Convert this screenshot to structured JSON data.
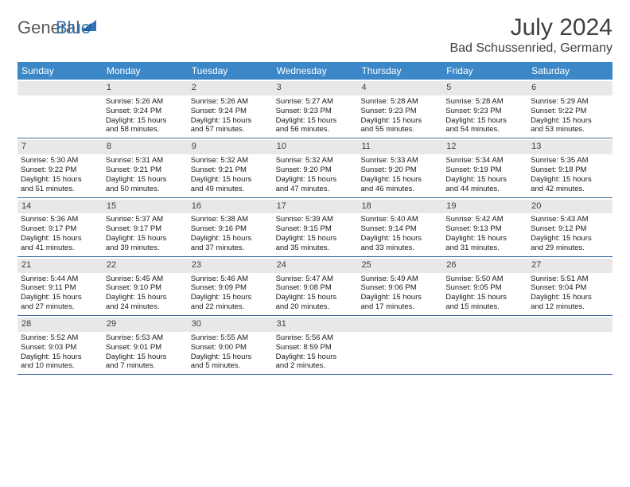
{
  "header": {
    "logo_general": "General",
    "logo_blue": "Blue",
    "month_title": "July 2024",
    "location": "Bad Schussenried, Germany"
  },
  "colors": {
    "header_bar": "#3c87c7",
    "row_border": "#3c6da0",
    "day_band": "#e8e8e8",
    "logo_blue": "#2f74b5",
    "text_dark": "#404040"
  },
  "weekdays": [
    "Sunday",
    "Monday",
    "Tuesday",
    "Wednesday",
    "Thursday",
    "Friday",
    "Saturday"
  ],
  "weeks": [
    [
      null,
      {
        "n": "1",
        "sr": "Sunrise: 5:26 AM",
        "ss": "Sunset: 9:24 PM",
        "dl1": "Daylight: 15 hours",
        "dl2": "and 58 minutes."
      },
      {
        "n": "2",
        "sr": "Sunrise: 5:26 AM",
        "ss": "Sunset: 9:24 PM",
        "dl1": "Daylight: 15 hours",
        "dl2": "and 57 minutes."
      },
      {
        "n": "3",
        "sr": "Sunrise: 5:27 AM",
        "ss": "Sunset: 9:23 PM",
        "dl1": "Daylight: 15 hours",
        "dl2": "and 56 minutes."
      },
      {
        "n": "4",
        "sr": "Sunrise: 5:28 AM",
        "ss": "Sunset: 9:23 PM",
        "dl1": "Daylight: 15 hours",
        "dl2": "and 55 minutes."
      },
      {
        "n": "5",
        "sr": "Sunrise: 5:28 AM",
        "ss": "Sunset: 9:23 PM",
        "dl1": "Daylight: 15 hours",
        "dl2": "and 54 minutes."
      },
      {
        "n": "6",
        "sr": "Sunrise: 5:29 AM",
        "ss": "Sunset: 9:22 PM",
        "dl1": "Daylight: 15 hours",
        "dl2": "and 53 minutes."
      }
    ],
    [
      {
        "n": "7",
        "sr": "Sunrise: 5:30 AM",
        "ss": "Sunset: 9:22 PM",
        "dl1": "Daylight: 15 hours",
        "dl2": "and 51 minutes."
      },
      {
        "n": "8",
        "sr": "Sunrise: 5:31 AM",
        "ss": "Sunset: 9:21 PM",
        "dl1": "Daylight: 15 hours",
        "dl2": "and 50 minutes."
      },
      {
        "n": "9",
        "sr": "Sunrise: 5:32 AM",
        "ss": "Sunset: 9:21 PM",
        "dl1": "Daylight: 15 hours",
        "dl2": "and 49 minutes."
      },
      {
        "n": "10",
        "sr": "Sunrise: 5:32 AM",
        "ss": "Sunset: 9:20 PM",
        "dl1": "Daylight: 15 hours",
        "dl2": "and 47 minutes."
      },
      {
        "n": "11",
        "sr": "Sunrise: 5:33 AM",
        "ss": "Sunset: 9:20 PM",
        "dl1": "Daylight: 15 hours",
        "dl2": "and 46 minutes."
      },
      {
        "n": "12",
        "sr": "Sunrise: 5:34 AM",
        "ss": "Sunset: 9:19 PM",
        "dl1": "Daylight: 15 hours",
        "dl2": "and 44 minutes."
      },
      {
        "n": "13",
        "sr": "Sunrise: 5:35 AM",
        "ss": "Sunset: 9:18 PM",
        "dl1": "Daylight: 15 hours",
        "dl2": "and 42 minutes."
      }
    ],
    [
      {
        "n": "14",
        "sr": "Sunrise: 5:36 AM",
        "ss": "Sunset: 9:17 PM",
        "dl1": "Daylight: 15 hours",
        "dl2": "and 41 minutes."
      },
      {
        "n": "15",
        "sr": "Sunrise: 5:37 AM",
        "ss": "Sunset: 9:17 PM",
        "dl1": "Daylight: 15 hours",
        "dl2": "and 39 minutes."
      },
      {
        "n": "16",
        "sr": "Sunrise: 5:38 AM",
        "ss": "Sunset: 9:16 PM",
        "dl1": "Daylight: 15 hours",
        "dl2": "and 37 minutes."
      },
      {
        "n": "17",
        "sr": "Sunrise: 5:39 AM",
        "ss": "Sunset: 9:15 PM",
        "dl1": "Daylight: 15 hours",
        "dl2": "and 35 minutes."
      },
      {
        "n": "18",
        "sr": "Sunrise: 5:40 AM",
        "ss": "Sunset: 9:14 PM",
        "dl1": "Daylight: 15 hours",
        "dl2": "and 33 minutes."
      },
      {
        "n": "19",
        "sr": "Sunrise: 5:42 AM",
        "ss": "Sunset: 9:13 PM",
        "dl1": "Daylight: 15 hours",
        "dl2": "and 31 minutes."
      },
      {
        "n": "20",
        "sr": "Sunrise: 5:43 AM",
        "ss": "Sunset: 9:12 PM",
        "dl1": "Daylight: 15 hours",
        "dl2": "and 29 minutes."
      }
    ],
    [
      {
        "n": "21",
        "sr": "Sunrise: 5:44 AM",
        "ss": "Sunset: 9:11 PM",
        "dl1": "Daylight: 15 hours",
        "dl2": "and 27 minutes."
      },
      {
        "n": "22",
        "sr": "Sunrise: 5:45 AM",
        "ss": "Sunset: 9:10 PM",
        "dl1": "Daylight: 15 hours",
        "dl2": "and 24 minutes."
      },
      {
        "n": "23",
        "sr": "Sunrise: 5:46 AM",
        "ss": "Sunset: 9:09 PM",
        "dl1": "Daylight: 15 hours",
        "dl2": "and 22 minutes."
      },
      {
        "n": "24",
        "sr": "Sunrise: 5:47 AM",
        "ss": "Sunset: 9:08 PM",
        "dl1": "Daylight: 15 hours",
        "dl2": "and 20 minutes."
      },
      {
        "n": "25",
        "sr": "Sunrise: 5:49 AM",
        "ss": "Sunset: 9:06 PM",
        "dl1": "Daylight: 15 hours",
        "dl2": "and 17 minutes."
      },
      {
        "n": "26",
        "sr": "Sunrise: 5:50 AM",
        "ss": "Sunset: 9:05 PM",
        "dl1": "Daylight: 15 hours",
        "dl2": "and 15 minutes."
      },
      {
        "n": "27",
        "sr": "Sunrise: 5:51 AM",
        "ss": "Sunset: 9:04 PM",
        "dl1": "Daylight: 15 hours",
        "dl2": "and 12 minutes."
      }
    ],
    [
      {
        "n": "28",
        "sr": "Sunrise: 5:52 AM",
        "ss": "Sunset: 9:03 PM",
        "dl1": "Daylight: 15 hours",
        "dl2": "and 10 minutes."
      },
      {
        "n": "29",
        "sr": "Sunrise: 5:53 AM",
        "ss": "Sunset: 9:01 PM",
        "dl1": "Daylight: 15 hours",
        "dl2": "and 7 minutes."
      },
      {
        "n": "30",
        "sr": "Sunrise: 5:55 AM",
        "ss": "Sunset: 9:00 PM",
        "dl1": "Daylight: 15 hours",
        "dl2": "and 5 minutes."
      },
      {
        "n": "31",
        "sr": "Sunrise: 5:56 AM",
        "ss": "Sunset: 8:59 PM",
        "dl1": "Daylight: 15 hours",
        "dl2": "and 2 minutes."
      },
      null,
      null,
      null
    ]
  ]
}
